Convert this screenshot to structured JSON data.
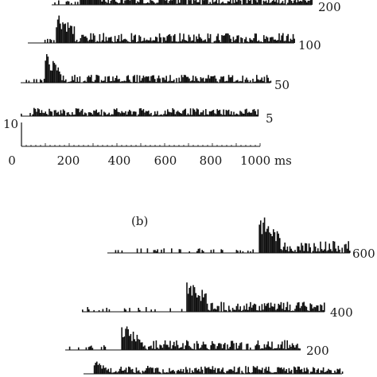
{
  "chart_data": [
    {
      "type": "bar",
      "panel_label": "",
      "xlabel": "",
      "x_unit": "ms",
      "xlim": [
        0,
        1000
      ],
      "x_ticks": [
        0,
        200,
        400,
        600,
        800,
        1000
      ],
      "x_tick_labels": [
        "0",
        "200",
        "400",
        "600",
        "800",
        "1000 ms"
      ],
      "scale_bar": {
        "value": 10,
        "label": "10"
      },
      "series": [
        {
          "label": "200",
          "onset_ms": 200,
          "pre_rate": 2,
          "peak": 24,
          "burst_ms": 90,
          "tail_rate": 5
        },
        {
          "label": "100",
          "onset_ms": 100,
          "pre_rate": 2,
          "peak": 22,
          "burst_ms": 80,
          "tail_rate": 5
        },
        {
          "label": "50",
          "onset_ms": 50,
          "pre_rate": 2,
          "peak": 20,
          "burst_ms": 70,
          "tail_rate": 4
        },
        {
          "label": "5",
          "onset_ms": 5,
          "pre_rate": 2,
          "peak": 6,
          "burst_ms": 60,
          "tail_rate": 4
        }
      ]
    },
    {
      "type": "bar",
      "panel_label": "(b)",
      "xlabel": "",
      "x_unit": "ms",
      "series": [
        {
          "label": "600",
          "onset_ms": 600,
          "pre_rate": 2,
          "peak": 26,
          "burst_ms": 90,
          "tail_rate": 6
        },
        {
          "label": "400",
          "onset_ms": 400,
          "pre_rate": 2,
          "peak": 24,
          "burst_ms": 90,
          "tail_rate": 5
        },
        {
          "label": "200",
          "onset_ms": 200,
          "pre_rate": 2,
          "peak": 18,
          "burst_ms": 80,
          "tail_rate": 5
        },
        {
          "label": "",
          "onset_ms": 5,
          "pre_rate": 2,
          "peak": 10,
          "burst_ms": 60,
          "tail_rate": 4
        }
      ]
    }
  ]
}
